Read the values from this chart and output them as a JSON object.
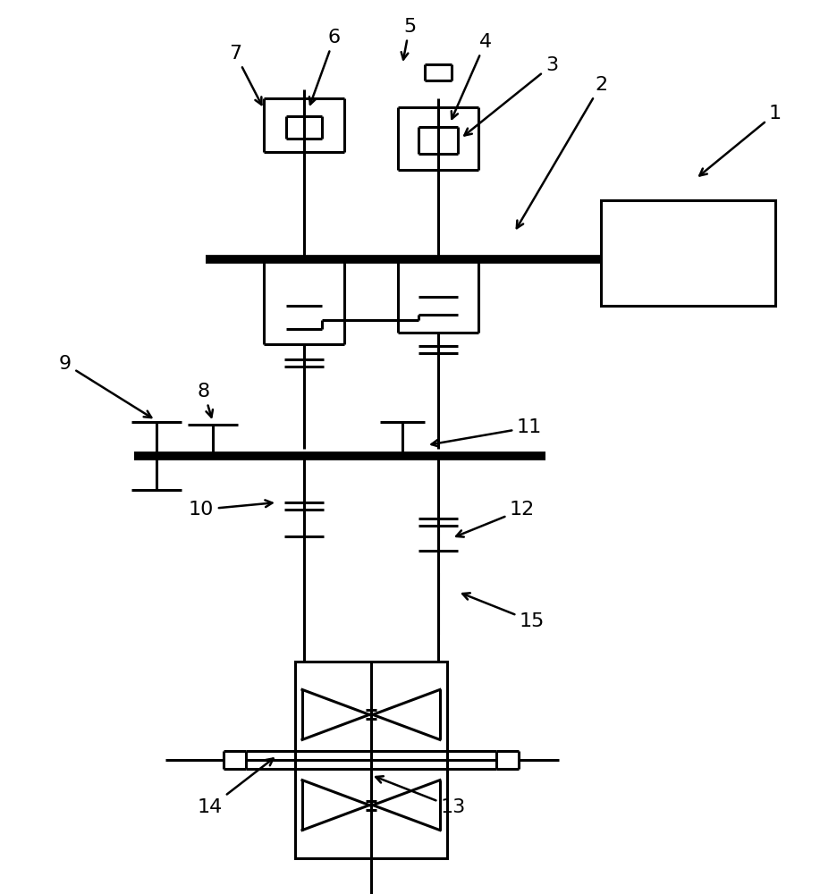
{
  "lw": 2.2,
  "lw_thick": 7,
  "bg": "#ffffff",
  "fg": "#000000",
  "figsize": [
    9.17,
    10.0
  ],
  "dpi": 100
}
